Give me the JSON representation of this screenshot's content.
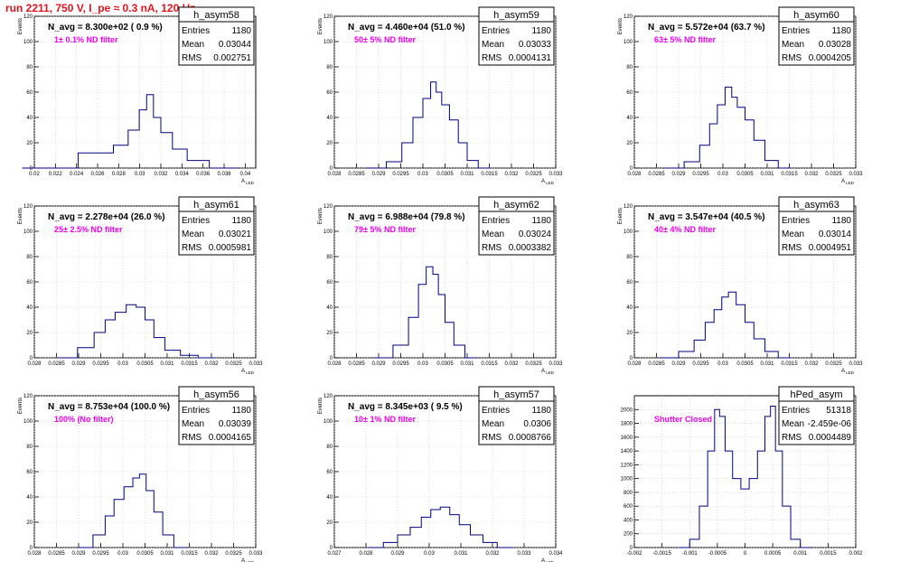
{
  "run_title": "run 2211,   750 V, I_pe ≈ 0.3 nA, 120 Hz",
  "colors": {
    "hist": "#000080",
    "grid": "#c8c8c8",
    "filter_text": "#ee00ee",
    "title": "#e8141c"
  },
  "chart_data": [
    {
      "type": "histogram",
      "name": "h_asym58",
      "entries": "1180",
      "mean": "0.03044",
      "rms": "0.002751",
      "navg": "N_avg = 8.300e+02 ( 0.9 %)",
      "filter": "1± 0.1% ND filter",
      "xlabel": "A_LED",
      "ylabel": "Events",
      "xlim": [
        0.02,
        0.041
      ],
      "ylim": [
        0,
        120
      ],
      "xticks": [
        0.02,
        0.022,
        0.024,
        0.026,
        0.028,
        0.03,
        0.032,
        0.034,
        0.036,
        0.038,
        0.04
      ],
      "xticklabels": [
        "0.02",
        "0.022",
        "0.024",
        "0.026",
        "0.028",
        "0.03",
        "0.032",
        "0.034",
        "0.036",
        "0.038",
        "0.04"
      ],
      "yticks": [
        0,
        20,
        40,
        60,
        80,
        100,
        120
      ],
      "bin_x": [
        0.0215,
        0.0268,
        0.0282,
        0.0296,
        0.0303,
        0.031,
        0.0316,
        0.0324,
        0.0338,
        0.0352,
        0.038
      ],
      "bin_y": [
        0,
        12,
        18,
        30,
        46,
        58,
        40,
        28,
        15,
        6,
        0
      ]
    },
    {
      "type": "histogram",
      "name": "h_asym59",
      "entries": "1180",
      "mean": "0.03033",
      "rms": "0.0004131",
      "navg": "N_avg = 4.460e+04 (51.0 %)",
      "filter": "50± 5% ND filter",
      "xlabel": "A_LED",
      "ylabel": "Events",
      "xlim": [
        0.028,
        0.033
      ],
      "ylim": [
        0,
        120
      ],
      "xticks": [
        0.028,
        0.0285,
        0.029,
        0.0295,
        0.03,
        0.0305,
        0.031,
        0.0315,
        0.032,
        0.0325,
        0.033
      ],
      "xticklabels": [
        "0.028",
        "0.0285",
        "0.029",
        "0.0295",
        "0.03",
        "0.0305",
        "0.031",
        "0.0315",
        "0.032",
        "0.0325",
        "0.033"
      ],
      "yticks": [
        0,
        20,
        40,
        60,
        80,
        100,
        120
      ],
      "bin_x": [
        0.02895,
        0.0294,
        0.02965,
        0.0299,
        0.0301,
        0.03025,
        0.03035,
        0.0305,
        0.0307,
        0.0309,
        0.0311,
        0.0314
      ],
      "bin_y": [
        0,
        5,
        20,
        40,
        55,
        68,
        60,
        50,
        38,
        20,
        6,
        0
      ]
    },
    {
      "type": "histogram",
      "name": "h_asym60",
      "entries": "1180",
      "mean": "0.03028",
      "rms": "0.0004205",
      "navg": "N_avg = 5.572e+04 (63.7 %)",
      "filter": "63± 5% ND filter",
      "xlabel": "A_LED",
      "ylabel": "Events",
      "xlim": [
        0.028,
        0.033
      ],
      "ylim": [
        0,
        120
      ],
      "xticks": [
        0.028,
        0.0285,
        0.029,
        0.0295,
        0.03,
        0.0305,
        0.031,
        0.0315,
        0.032,
        0.0325,
        0.033
      ],
      "xticklabels": [
        "0.028",
        "0.0285",
        "0.029",
        "0.0295",
        "0.03",
        "0.0305",
        "0.031",
        "0.0315",
        "0.032",
        "0.0325",
        "0.033"
      ],
      "yticks": [
        0,
        20,
        40,
        60,
        80,
        100,
        120
      ],
      "bin_x": [
        0.0289,
        0.02935,
        0.0296,
        0.0298,
        0.02995,
        0.03015,
        0.03025,
        0.0304,
        0.0306,
        0.0308,
        0.0311,
        0.0314
      ],
      "bin_y": [
        0,
        5,
        18,
        35,
        50,
        64,
        56,
        48,
        38,
        22,
        6,
        0
      ]
    },
    {
      "type": "histogram",
      "name": "h_asym61",
      "entries": "1180",
      "mean": "0.03021",
      "rms": "0.0005981",
      "navg": "N_avg = 2.278e+04 (26.0 %)",
      "filter": "25± 2.5% ND filter",
      "xlabel": "A_LED",
      "ylabel": "Events",
      "xlim": [
        0.028,
        0.033
      ],
      "ylim": [
        0,
        120
      ],
      "xticks": [
        0.028,
        0.0285,
        0.029,
        0.0295,
        0.03,
        0.0305,
        0.031,
        0.0315,
        0.032,
        0.0325,
        0.033
      ],
      "xticklabels": [
        "0.028",
        "0.0285",
        "0.029",
        "0.0295",
        "0.03",
        "0.0305",
        "0.031",
        "0.0315",
        "0.032",
        "0.0325",
        "0.033"
      ],
      "yticks": [
        0,
        20,
        40,
        60,
        80,
        100,
        120
      ],
      "bin_x": [
        0.02875,
        0.0292,
        0.0295,
        0.0297,
        0.02995,
        0.0302,
        0.0304,
        0.0306,
        0.0308,
        0.0311,
        0.0315,
        0.0319
      ],
      "bin_y": [
        0,
        8,
        20,
        30,
        36,
        42,
        40,
        30,
        16,
        6,
        2,
        0
      ]
    },
    {
      "type": "histogram",
      "name": "h_asym62",
      "entries": "1180",
      "mean": "0.03024",
      "rms": "0.0003382",
      "navg": "N_avg = 6.988e+04 (79.8 %)",
      "filter": "79± 5% ND filter",
      "xlabel": "A_LED",
      "ylabel": "Events",
      "xlim": [
        0.028,
        0.033
      ],
      "ylim": [
        0,
        120
      ],
      "xticks": [
        0.028,
        0.0285,
        0.029,
        0.0295,
        0.03,
        0.0305,
        0.031,
        0.0315,
        0.032,
        0.0325,
        0.033
      ],
      "xticklabels": [
        "0.028",
        "0.0285",
        "0.029",
        "0.0295",
        "0.03",
        "0.0305",
        "0.031",
        "0.0315",
        "0.032",
        "0.0325",
        "0.033"
      ],
      "yticks": [
        0,
        20,
        40,
        60,
        80,
        100,
        120
      ],
      "bin_x": [
        0.0291,
        0.02955,
        0.0298,
        0.03,
        0.03015,
        0.0303,
        0.0304,
        0.0306,
        0.0308,
        0.0311
      ],
      "bin_y": [
        0,
        10,
        32,
        58,
        72,
        66,
        50,
        28,
        10,
        0
      ]
    },
    {
      "type": "histogram",
      "name": "h_asym63",
      "entries": "1180",
      "mean": "0.03014",
      "rms": "0.0004951",
      "navg": "N_avg = 3.547e+04 (40.5 %)",
      "filter": "40± 4% ND filter",
      "xlabel": "A_LED",
      "ylabel": "Events",
      "xlim": [
        0.028,
        0.033
      ],
      "ylim": [
        0,
        120
      ],
      "xticks": [
        0.028,
        0.0285,
        0.029,
        0.0295,
        0.03,
        0.0305,
        0.031,
        0.0315,
        0.032,
        0.0325,
        0.033
      ],
      "xticklabels": [
        "0.028",
        "0.0285",
        "0.029",
        "0.0295",
        "0.03",
        "0.0305",
        "0.031",
        "0.0315",
        "0.032",
        "0.0325",
        "0.033"
      ],
      "yticks": [
        0,
        20,
        40,
        60,
        80,
        100,
        120
      ],
      "bin_x": [
        0.0288,
        0.0292,
        0.0295,
        0.0297,
        0.0299,
        0.03005,
        0.0302,
        0.0304,
        0.0306,
        0.0308,
        0.0311,
        0.0314
      ],
      "bin_y": [
        0,
        5,
        14,
        28,
        38,
        48,
        52,
        42,
        28,
        15,
        5,
        0
      ]
    },
    {
      "type": "histogram",
      "name": "h_asym56",
      "entries": "1180",
      "mean": "0.03039",
      "rms": "0.0004165",
      "navg": "N_avg = 8.753e+04 (100.0 %)",
      "filter": "100% (No filter)",
      "xlabel": "A_LED",
      "ylabel": "Events",
      "xlim": [
        0.028,
        0.033
      ],
      "ylim": [
        0,
        120
      ],
      "xticks": [
        0.028,
        0.0285,
        0.029,
        0.0295,
        0.03,
        0.0305,
        0.031,
        0.0315,
        0.032,
        0.0325,
        0.033
      ],
      "xticklabels": [
        "0.028",
        "0.0285",
        "0.029",
        "0.0295",
        "0.03",
        "0.0305",
        "0.031",
        "0.0315",
        "0.032",
        "0.0325",
        "0.033"
      ],
      "yticks": [
        0,
        20,
        40,
        60,
        80,
        100,
        120
      ],
      "bin_x": [
        0.02915,
        0.0295,
        0.0297,
        0.0299,
        0.03015,
        0.0303,
        0.03045,
        0.0306,
        0.0308,
        0.031,
        0.0313
      ],
      "bin_y": [
        0,
        10,
        25,
        38,
        48,
        55,
        58,
        45,
        28,
        10,
        0
      ]
    },
    {
      "type": "histogram",
      "name": "h_asym57",
      "entries": "1180",
      "mean": "0.0306",
      "rms": "0.0008766",
      "navg": "N_avg = 8.345e+03 ( 9.5 %)",
      "filter": "10± 1% ND filter",
      "xlabel": "A_LED",
      "ylabel": "Events",
      "xlim": [
        0.027,
        0.034
      ],
      "ylim": [
        0,
        120
      ],
      "xticks": [
        0.027,
        0.028,
        0.029,
        0.03,
        0.031,
        0.032,
        0.033,
        0.034
      ],
      "xticklabels": [
        "0.027",
        "0.028",
        "0.029",
        "0.03",
        "0.031",
        "0.032",
        "0.033",
        "0.034"
      ],
      "yticks": [
        0,
        20,
        40,
        60,
        80,
        100,
        120
      ],
      "bin_x": [
        0.0283,
        0.0288,
        0.0292,
        0.0296,
        0.0299,
        0.0302,
        0.0305,
        0.0308,
        0.0311,
        0.0315,
        0.0319,
        0.0324
      ],
      "bin_y": [
        0,
        4,
        10,
        16,
        24,
        30,
        32,
        26,
        18,
        10,
        4,
        0
      ]
    },
    {
      "type": "histogram",
      "name": "hPed_asym",
      "entries": "51318",
      "mean": "-2.459e-06",
      "rms": "0.0004489",
      "navg": "",
      "filter": "Shutter Closed",
      "xlabel": "",
      "ylabel": "",
      "xlim": [
        -0.002,
        0.002
      ],
      "ylim": [
        0,
        2200
      ],
      "xticks": [
        -0.002,
        -0.0015,
        -0.001,
        -0.0005,
        0,
        0.0005,
        0.001,
        0.0015,
        0.002
      ],
      "xticklabels": [
        "-0.002",
        "-0.0015",
        "-0.001",
        "-0.0005",
        "0",
        "0.0005",
        "0.001",
        "0.0015",
        "0.002"
      ],
      "yticks": [
        0,
        200,
        400,
        600,
        800,
        1000,
        1200,
        1400,
        1600,
        1800,
        2000
      ],
      "bin_x": [
        -0.0011,
        -0.0009,
        -0.00075,
        -0.0006,
        -0.0005,
        -0.00042,
        -0.0003,
        -0.00015,
        0,
        0.00015,
        0.0003,
        0.00042,
        0.0005,
        0.0006,
        0.00075,
        0.0009,
        0.0011
      ],
      "bin_y": [
        0,
        120,
        600,
        1400,
        2000,
        1900,
        1400,
        1000,
        850,
        1000,
        1400,
        1900,
        2050,
        1400,
        600,
        120,
        0
      ]
    }
  ]
}
